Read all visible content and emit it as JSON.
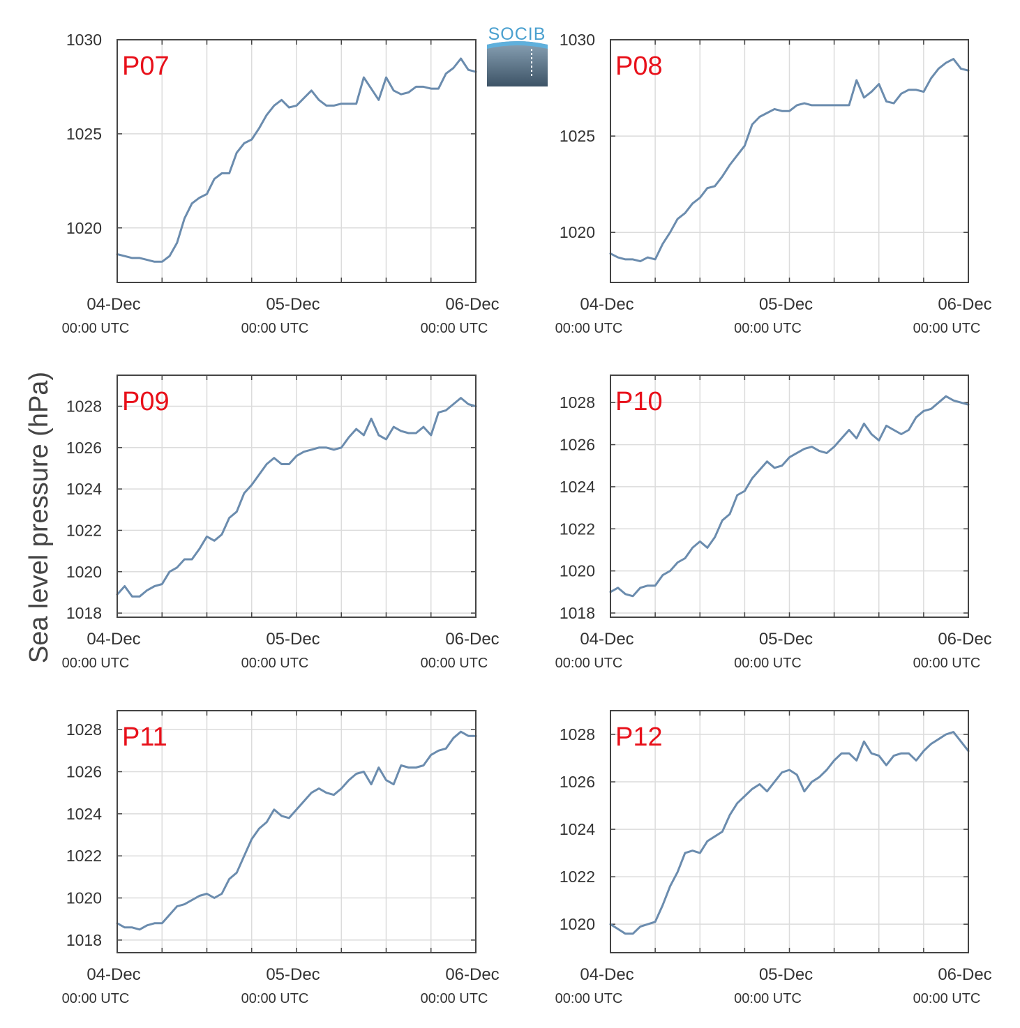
{
  "logo": {
    "text": "SOCIB"
  },
  "chart_data": {
    "type": "line",
    "ylabel": "Sea level pressure (hPa)",
    "line_color": "#6b8cae",
    "grid": true,
    "x_ticks": [
      {
        "date": "04-Dec",
        "time": "00:00 UTC"
      },
      {
        "date": "05-Dec",
        "time": "00:00 UTC"
      },
      {
        "date": "06-Dec",
        "time": "00:00 UTC"
      }
    ],
    "x_range_hours": [
      0,
      48
    ],
    "panels": [
      {
        "label": "P07",
        "ylim": [
          1017.1,
          1030.0
        ],
        "yticks": [
          1020,
          1025,
          1030
        ],
        "x": [
          0,
          1,
          2,
          3,
          4,
          5,
          6,
          7,
          8,
          9,
          10,
          11,
          12,
          13,
          14,
          15,
          16,
          17,
          18,
          19,
          20,
          21,
          22,
          23,
          24,
          25,
          26,
          27,
          28,
          29,
          30,
          31,
          32,
          33,
          34,
          35,
          36,
          37,
          38,
          39,
          40,
          41,
          42,
          43,
          44,
          45,
          46,
          47,
          48
        ],
        "values": [
          1018.6,
          1018.5,
          1018.4,
          1018.4,
          1018.3,
          1018.2,
          1018.2,
          1018.5,
          1019.2,
          1020.5,
          1021.3,
          1021.6,
          1021.8,
          1022.6,
          1022.9,
          1022.9,
          1024.0,
          1024.5,
          1024.7,
          1025.3,
          1026.0,
          1026.5,
          1026.8,
          1026.4,
          1026.5,
          1026.9,
          1027.3,
          1026.8,
          1026.5,
          1026.5,
          1026.6,
          1026.6,
          1026.6,
          1028.0,
          1027.4,
          1026.8,
          1028.0,
          1027.3,
          1027.1,
          1027.2,
          1027.5,
          1027.5,
          1027.4,
          1027.4,
          1028.2,
          1028.5,
          1029.0,
          1028.4,
          1028.3
        ]
      },
      {
        "label": "P08",
        "ylim": [
          1017.4,
          1030.0
        ],
        "yticks": [
          1020,
          1025,
          1030
        ],
        "x": [
          0,
          1,
          2,
          3,
          4,
          5,
          6,
          7,
          8,
          9,
          10,
          11,
          12,
          13,
          14,
          15,
          16,
          17,
          18,
          19,
          20,
          21,
          22,
          23,
          24,
          25,
          26,
          27,
          28,
          29,
          30,
          31,
          32,
          33,
          34,
          35,
          36,
          37,
          38,
          39,
          40,
          41,
          42,
          43,
          44,
          45,
          46,
          47,
          48
        ],
        "values": [
          1018.9,
          1018.7,
          1018.6,
          1018.6,
          1018.5,
          1018.7,
          1018.6,
          1019.4,
          1020.0,
          1020.7,
          1021.0,
          1021.5,
          1021.8,
          1022.3,
          1022.4,
          1022.9,
          1023.5,
          1024.0,
          1024.5,
          1025.6,
          1026.0,
          1026.2,
          1026.4,
          1026.3,
          1026.3,
          1026.6,
          1026.7,
          1026.6,
          1026.6,
          1026.6,
          1026.6,
          1026.6,
          1026.6,
          1027.9,
          1027.0,
          1027.3,
          1027.7,
          1026.8,
          1026.7,
          1027.2,
          1027.4,
          1027.4,
          1027.3,
          1028.0,
          1028.5,
          1028.8,
          1029.0,
          1028.5,
          1028.4
        ]
      },
      {
        "label": "P09",
        "ylim": [
          1017.8,
          1029.5
        ],
        "yticks": [
          1018,
          1020,
          1022,
          1024,
          1026,
          1028
        ],
        "x": [
          0,
          1,
          2,
          3,
          4,
          5,
          6,
          7,
          8,
          9,
          10,
          11,
          12,
          13,
          14,
          15,
          16,
          17,
          18,
          19,
          20,
          21,
          22,
          23,
          24,
          25,
          26,
          27,
          28,
          29,
          30,
          31,
          32,
          33,
          34,
          35,
          36,
          37,
          38,
          39,
          40,
          41,
          42,
          43,
          44,
          45,
          46,
          47,
          48
        ],
        "values": [
          1018.9,
          1019.3,
          1018.8,
          1018.8,
          1019.1,
          1019.3,
          1019.4,
          1020.0,
          1020.2,
          1020.6,
          1020.6,
          1021.1,
          1021.7,
          1021.5,
          1021.8,
          1022.6,
          1022.9,
          1023.8,
          1024.2,
          1024.7,
          1025.2,
          1025.5,
          1025.2,
          1025.2,
          1025.6,
          1025.8,
          1025.9,
          1026.0,
          1026.0,
          1025.9,
          1026.0,
          1026.5,
          1026.9,
          1026.6,
          1027.4,
          1026.6,
          1026.4,
          1027.0,
          1026.8,
          1026.7,
          1026.7,
          1027.0,
          1026.6,
          1027.7,
          1027.8,
          1028.1,
          1028.4,
          1028.1,
          1028.0
        ]
      },
      {
        "label": "P10",
        "ylim": [
          1017.8,
          1029.3
        ],
        "yticks": [
          1018,
          1020,
          1022,
          1024,
          1026,
          1028
        ],
        "x": [
          0,
          1,
          2,
          3,
          4,
          5,
          6,
          7,
          8,
          9,
          10,
          11,
          12,
          13,
          14,
          15,
          16,
          17,
          18,
          19,
          20,
          21,
          22,
          23,
          24,
          25,
          26,
          27,
          28,
          29,
          30,
          31,
          32,
          33,
          34,
          35,
          36,
          37,
          38,
          39,
          40,
          41,
          42,
          43,
          44,
          45,
          46,
          47,
          48
        ],
        "values": [
          1019.0,
          1019.2,
          1018.9,
          1018.8,
          1019.2,
          1019.3,
          1019.3,
          1019.8,
          1020.0,
          1020.4,
          1020.6,
          1021.1,
          1021.4,
          1021.1,
          1021.6,
          1022.4,
          1022.7,
          1023.6,
          1023.8,
          1024.4,
          1024.8,
          1025.2,
          1024.9,
          1025.0,
          1025.4,
          1025.6,
          1025.8,
          1025.9,
          1025.7,
          1025.6,
          1025.9,
          1026.3,
          1026.7,
          1026.3,
          1027.0,
          1026.5,
          1026.2,
          1026.9,
          1026.7,
          1026.5,
          1026.7,
          1027.3,
          1027.6,
          1027.7,
          1028.0,
          1028.3,
          1028.1,
          1028.0,
          1027.9
        ]
      },
      {
        "label": "P11",
        "ylim": [
          1017.4,
          1028.9
        ],
        "yticks": [
          1018,
          1020,
          1022,
          1024,
          1026,
          1028
        ],
        "x": [
          0,
          1,
          2,
          3,
          4,
          5,
          6,
          7,
          8,
          9,
          10,
          11,
          12,
          13,
          14,
          15,
          16,
          17,
          18,
          19,
          20,
          21,
          22,
          23,
          24,
          25,
          26,
          27,
          28,
          29,
          30,
          31,
          32,
          33,
          34,
          35,
          36,
          37,
          38,
          39,
          40,
          41,
          42,
          43,
          44,
          45,
          46,
          47,
          48
        ],
        "values": [
          1018.8,
          1018.6,
          1018.6,
          1018.5,
          1018.7,
          1018.8,
          1018.8,
          1019.2,
          1019.6,
          1019.7,
          1019.9,
          1020.1,
          1020.2,
          1020.0,
          1020.2,
          1020.9,
          1021.2,
          1022.0,
          1022.8,
          1023.3,
          1023.6,
          1024.2,
          1023.9,
          1023.8,
          1024.2,
          1024.6,
          1025.0,
          1025.2,
          1025.0,
          1024.9,
          1025.2,
          1025.6,
          1025.9,
          1026.0,
          1025.4,
          1026.2,
          1025.6,
          1025.4,
          1026.3,
          1026.2,
          1026.2,
          1026.3,
          1026.8,
          1027.0,
          1027.1,
          1027.6,
          1027.9,
          1027.7,
          1027.7
        ]
      },
      {
        "label": "P12",
        "ylim": [
          1018.8,
          1029.0
        ],
        "yticks": [
          1020,
          1022,
          1024,
          1026,
          1028
        ],
        "x": [
          0,
          1,
          2,
          3,
          4,
          5,
          6,
          7,
          8,
          9,
          10,
          11,
          12,
          13,
          14,
          15,
          16,
          17,
          18,
          19,
          20,
          21,
          22,
          23,
          24,
          25,
          26,
          27,
          28,
          29,
          30,
          31,
          32,
          33,
          34,
          35,
          36,
          37,
          38,
          39,
          40,
          41,
          42,
          43,
          44,
          45,
          46,
          47,
          48
        ],
        "values": [
          1020.0,
          1019.8,
          1019.6,
          1019.6,
          1019.9,
          1020.0,
          1020.1,
          1020.8,
          1021.6,
          1022.2,
          1023.0,
          1023.1,
          1023.0,
          1023.5,
          1023.7,
          1023.9,
          1024.6,
          1025.1,
          1025.4,
          1025.7,
          1025.9,
          1025.6,
          1026.0,
          1026.4,
          1026.5,
          1026.3,
          1025.6,
          1026.0,
          1026.2,
          1026.5,
          1026.9,
          1027.2,
          1027.2,
          1026.9,
          1027.7,
          1027.2,
          1027.1,
          1026.7,
          1027.1,
          1027.2,
          1027.2,
          1026.9,
          1027.3,
          1027.6,
          1027.8,
          1028.0,
          1028.1,
          1027.7,
          1027.3
        ]
      }
    ]
  }
}
